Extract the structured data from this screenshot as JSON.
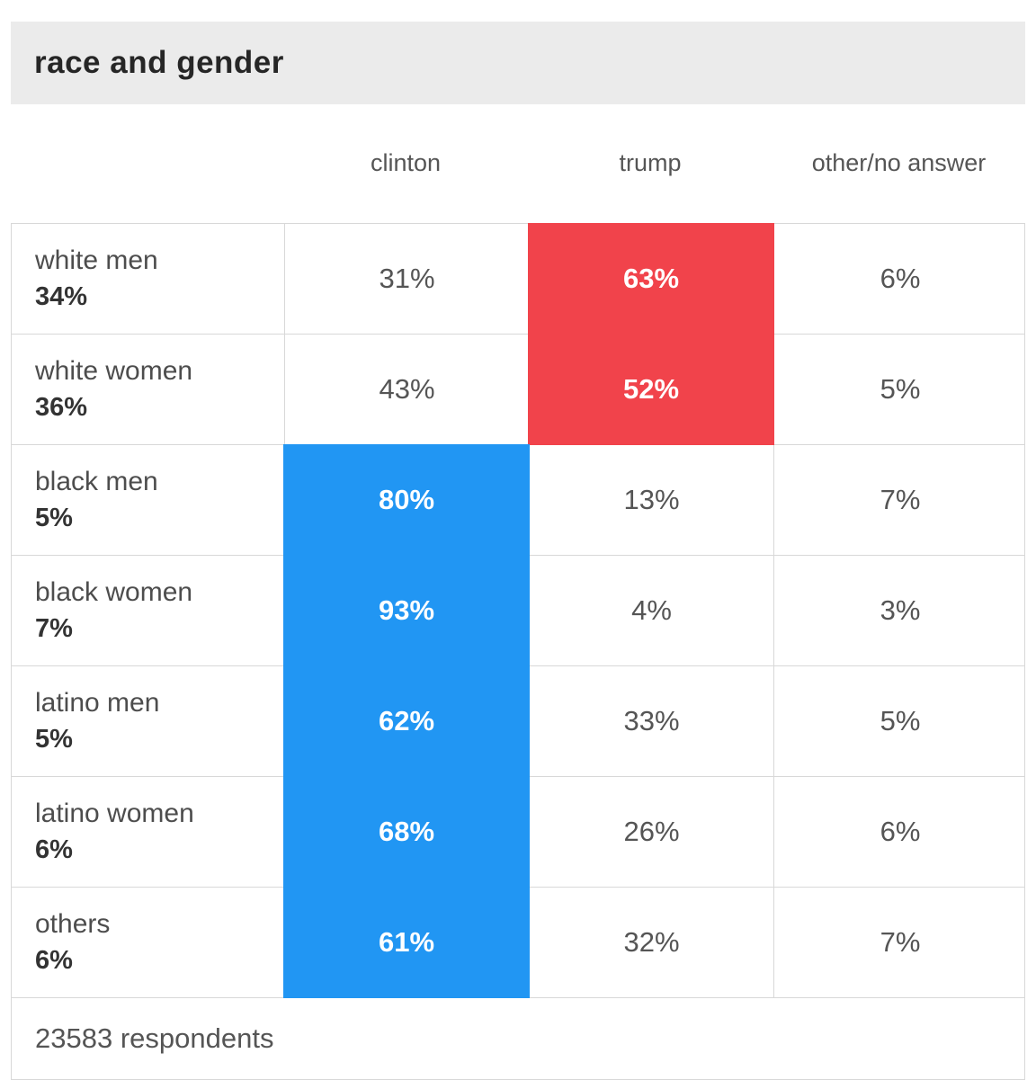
{
  "chart_data": {
    "type": "table",
    "title": "race and gender",
    "columns": [
      "clinton",
      "trump",
      "other/no answer"
    ],
    "rows": [
      {
        "label": "white men",
        "share": "34%",
        "clinton": "31%",
        "trump": "63%",
        "other": "6%",
        "winner": "trump"
      },
      {
        "label": "white women",
        "share": "36%",
        "clinton": "43%",
        "trump": "52%",
        "other": "5%",
        "winner": "trump"
      },
      {
        "label": "black men",
        "share": "5%",
        "clinton": "80%",
        "trump": "13%",
        "other": "7%",
        "winner": "clinton"
      },
      {
        "label": "black women",
        "share": "7%",
        "clinton": "93%",
        "trump": "4%",
        "other": "3%",
        "winner": "clinton"
      },
      {
        "label": "latino men",
        "share": "5%",
        "clinton": "62%",
        "trump": "33%",
        "other": "5%",
        "winner": "clinton"
      },
      {
        "label": "latino women",
        "share": "6%",
        "clinton": "68%",
        "trump": "26%",
        "other": "6%",
        "winner": "clinton"
      },
      {
        "label": "others",
        "share": "6%",
        "clinton": "61%",
        "trump": "32%",
        "other": "7%",
        "winner": "clinton"
      }
    ],
    "footer": "23583 respondents",
    "colors": {
      "clinton_highlight": "#2196f3",
      "trump_highlight": "#f1434b",
      "title_background": "#ebebeb",
      "highlight_text": "#ffffff"
    },
    "layout": {
      "legend": "none",
      "grid": "table-borders"
    }
  }
}
